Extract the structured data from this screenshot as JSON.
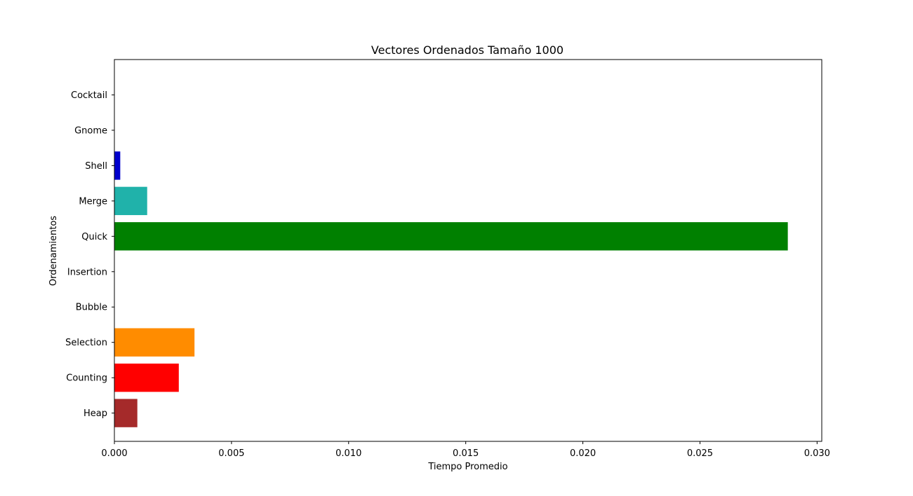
{
  "chart_data": {
    "type": "bar",
    "orientation": "horizontal",
    "title": "Vectores Ordenados Tamaño 1000",
    "xlabel": "Tiempo Promedio",
    "ylabel": "Ordenamientos",
    "categories": [
      "Heap",
      "Counting",
      "Selection",
      "Bubble",
      "Insertion",
      "Quick",
      "Merge",
      "Shell",
      "Gnome",
      "Cocktail"
    ],
    "values": [
      0.00098,
      0.00275,
      0.00342,
      0.0,
      0.0,
      0.02875,
      0.0014,
      0.00025,
      0.0,
      0.0
    ],
    "colors": [
      "#a52a2a",
      "#ff0000",
      "#ff8c00",
      "#0000ff",
      "#ff00ff",
      "#008000",
      "#20b2aa",
      "#0000cd",
      "#800080",
      "#ffa500"
    ],
    "xlim": [
      0.0,
      0.0302
    ],
    "xticks": [
      "0.000",
      "0.005",
      "0.010",
      "0.015",
      "0.020",
      "0.025",
      "0.030"
    ],
    "xtick_values": [
      0.0,
      0.005,
      0.01,
      0.015,
      0.02,
      0.025,
      0.03
    ],
    "grid": false,
    "legend": "none"
  }
}
